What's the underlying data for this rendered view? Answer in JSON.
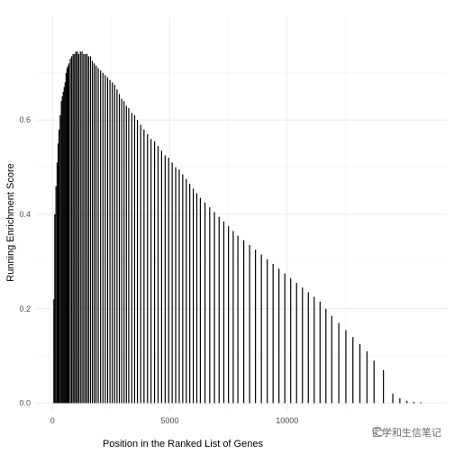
{
  "chart_data": {
    "type": "bar",
    "xlabel": "Position in the Ranked List of Genes",
    "ylabel": "Running Enrichment Score",
    "xlim": [
      -700,
      16800
    ],
    "ylim": [
      -0.02,
      0.82
    ],
    "x_ticks": [
      0,
      5000,
      10000
    ],
    "x_tick_labels": [
      "0",
      "5000",
      "10000"
    ],
    "y_ticks": [
      0.0,
      0.2,
      0.4,
      0.6
    ],
    "y_tick_labels": [
      "0.0",
      "0.2",
      "0.4",
      "0.6"
    ],
    "grid": true,
    "legend": "none",
    "bar_color": "#000000",
    "x": [
      60,
      100,
      150,
      200,
      240,
      280,
      330,
      380,
      420,
      460,
      500,
      540,
      580,
      620,
      660,
      700,
      760,
      820,
      880,
      940,
      1000,
      1060,
      1120,
      1190,
      1260,
      1330,
      1400,
      1470,
      1540,
      1620,
      1700,
      1780,
      1860,
      1950,
      2050,
      2150,
      2250,
      2350,
      2450,
      2550,
      2650,
      2750,
      2850,
      2950,
      3050,
      3150,
      3250,
      3380,
      3500,
      3620,
      3760,
      3900,
      4050,
      4200,
      4350,
      4500,
      4650,
      4800,
      4950,
      5100,
      5250,
      5400,
      5550,
      5700,
      5850,
      6000,
      6150,
      6300,
      6500,
      6700,
      6900,
      7100,
      7300,
      7500,
      7700,
      7900,
      8150,
      8400,
      8650,
      8900,
      9150,
      9400,
      9650,
      9900,
      10150,
      10400,
      10650,
      10900,
      11150,
      11400,
      11650,
      11900,
      12200,
      12500,
      12800,
      13100,
      13400,
      13700,
      14100,
      14500,
      14800,
      15100,
      15400,
      15700
    ],
    "y": [
      0.22,
      0.4,
      0.46,
      0.51,
      0.55,
      0.58,
      0.61,
      0.64,
      0.65,
      0.66,
      0.67,
      0.68,
      0.7,
      0.71,
      0.715,
      0.72,
      0.73,
      0.735,
      0.74,
      0.74,
      0.745,
      0.745,
      0.74,
      0.745,
      0.745,
      0.74,
      0.74,
      0.74,
      0.735,
      0.735,
      0.725,
      0.72,
      0.715,
      0.71,
      0.705,
      0.7,
      0.695,
      0.69,
      0.685,
      0.68,
      0.675,
      0.665,
      0.655,
      0.645,
      0.64,
      0.63,
      0.625,
      0.615,
      0.61,
      0.6,
      0.59,
      0.58,
      0.57,
      0.56,
      0.555,
      0.545,
      0.535,
      0.525,
      0.52,
      0.51,
      0.5,
      0.495,
      0.485,
      0.475,
      0.465,
      0.455,
      0.445,
      0.435,
      0.425,
      0.415,
      0.405,
      0.395,
      0.385,
      0.375,
      0.365,
      0.355,
      0.345,
      0.335,
      0.325,
      0.315,
      0.305,
      0.295,
      0.285,
      0.275,
      0.265,
      0.255,
      0.245,
      0.235,
      0.225,
      0.215,
      0.2,
      0.185,
      0.17,
      0.155,
      0.14,
      0.125,
      0.11,
      0.09,
      0.07,
      0.02,
      0.01,
      0.005,
      0.003,
      0.002
    ]
  },
  "watermark": {
    "text": "医学和生信笔记",
    "icon": "wechat-icon"
  }
}
